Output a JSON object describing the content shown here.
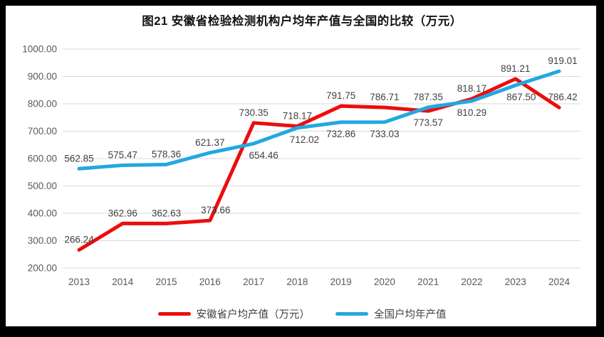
{
  "chart": {
    "title": "图21 安徽省检验检测机构户均年产值与全国的比较（万元）"
  },
  "legend": {
    "items": [
      {
        "label": "安徽省户均产值（万元）",
        "color": "#ec0d0d"
      },
      {
        "label": "全国户均年产值",
        "color": "#22a8e0"
      }
    ]
  },
  "colors": {
    "anhui_red": "#ec0d0d",
    "national_blue": "#22a8e0",
    "gridline": "#d9d9d9",
    "axis_text": "#595959",
    "data_label_text": "#404040",
    "frame": "#000000"
  },
  "chart_data": {
    "type": "line",
    "title": "图21 安徽省检验检测机构户均年产值与全国的比较（万元）",
    "x": [
      "2013",
      "2014",
      "2015",
      "2016",
      "2017",
      "2018",
      "2019",
      "2020",
      "2021",
      "2022",
      "2023",
      "2024"
    ],
    "series": [
      {
        "name": "安徽省户均产值（万元）",
        "color": "#ec0d0d",
        "values": [
          266.24,
          362.96,
          362.63,
          373.66,
          730.35,
          718.17,
          791.75,
          786.71,
          773.57,
          818.17,
          891.21,
          786.42
        ],
        "label_pos": [
          "above",
          "above",
          "above",
          "above",
          "above",
          "above",
          "above",
          "above",
          "below",
          "above",
          "above",
          "above"
        ],
        "label_dx": [
          0,
          0,
          0,
          8,
          0,
          0,
          0,
          0,
          0,
          0,
          0,
          5
        ]
      },
      {
        "name": "全国户均年产值",
        "color": "#22a8e0",
        "values": [
          562.85,
          575.47,
          578.36,
          621.37,
          654.46,
          712.02,
          732.86,
          733.03,
          787.35,
          810.29,
          867.5,
          919.01
        ],
        "label_pos": [
          "above",
          "above",
          "above",
          "above",
          "below",
          "below",
          "below",
          "below",
          "above",
          "below",
          "below",
          "above"
        ],
        "label_dx": [
          0,
          0,
          0,
          0,
          14,
          10,
          0,
          0,
          0,
          0,
          8,
          5
        ]
      }
    ],
    "ylim": [
      200,
      1000
    ],
    "ytick_step": 100,
    "ytick_labels": [
      "200.00",
      "300.00",
      "400.00",
      "500.00",
      "600.00",
      "700.00",
      "800.00",
      "900.00",
      "1000.00"
    ],
    "grid": true,
    "legend_position": "bottom",
    "xlabel": "",
    "ylabel": ""
  }
}
